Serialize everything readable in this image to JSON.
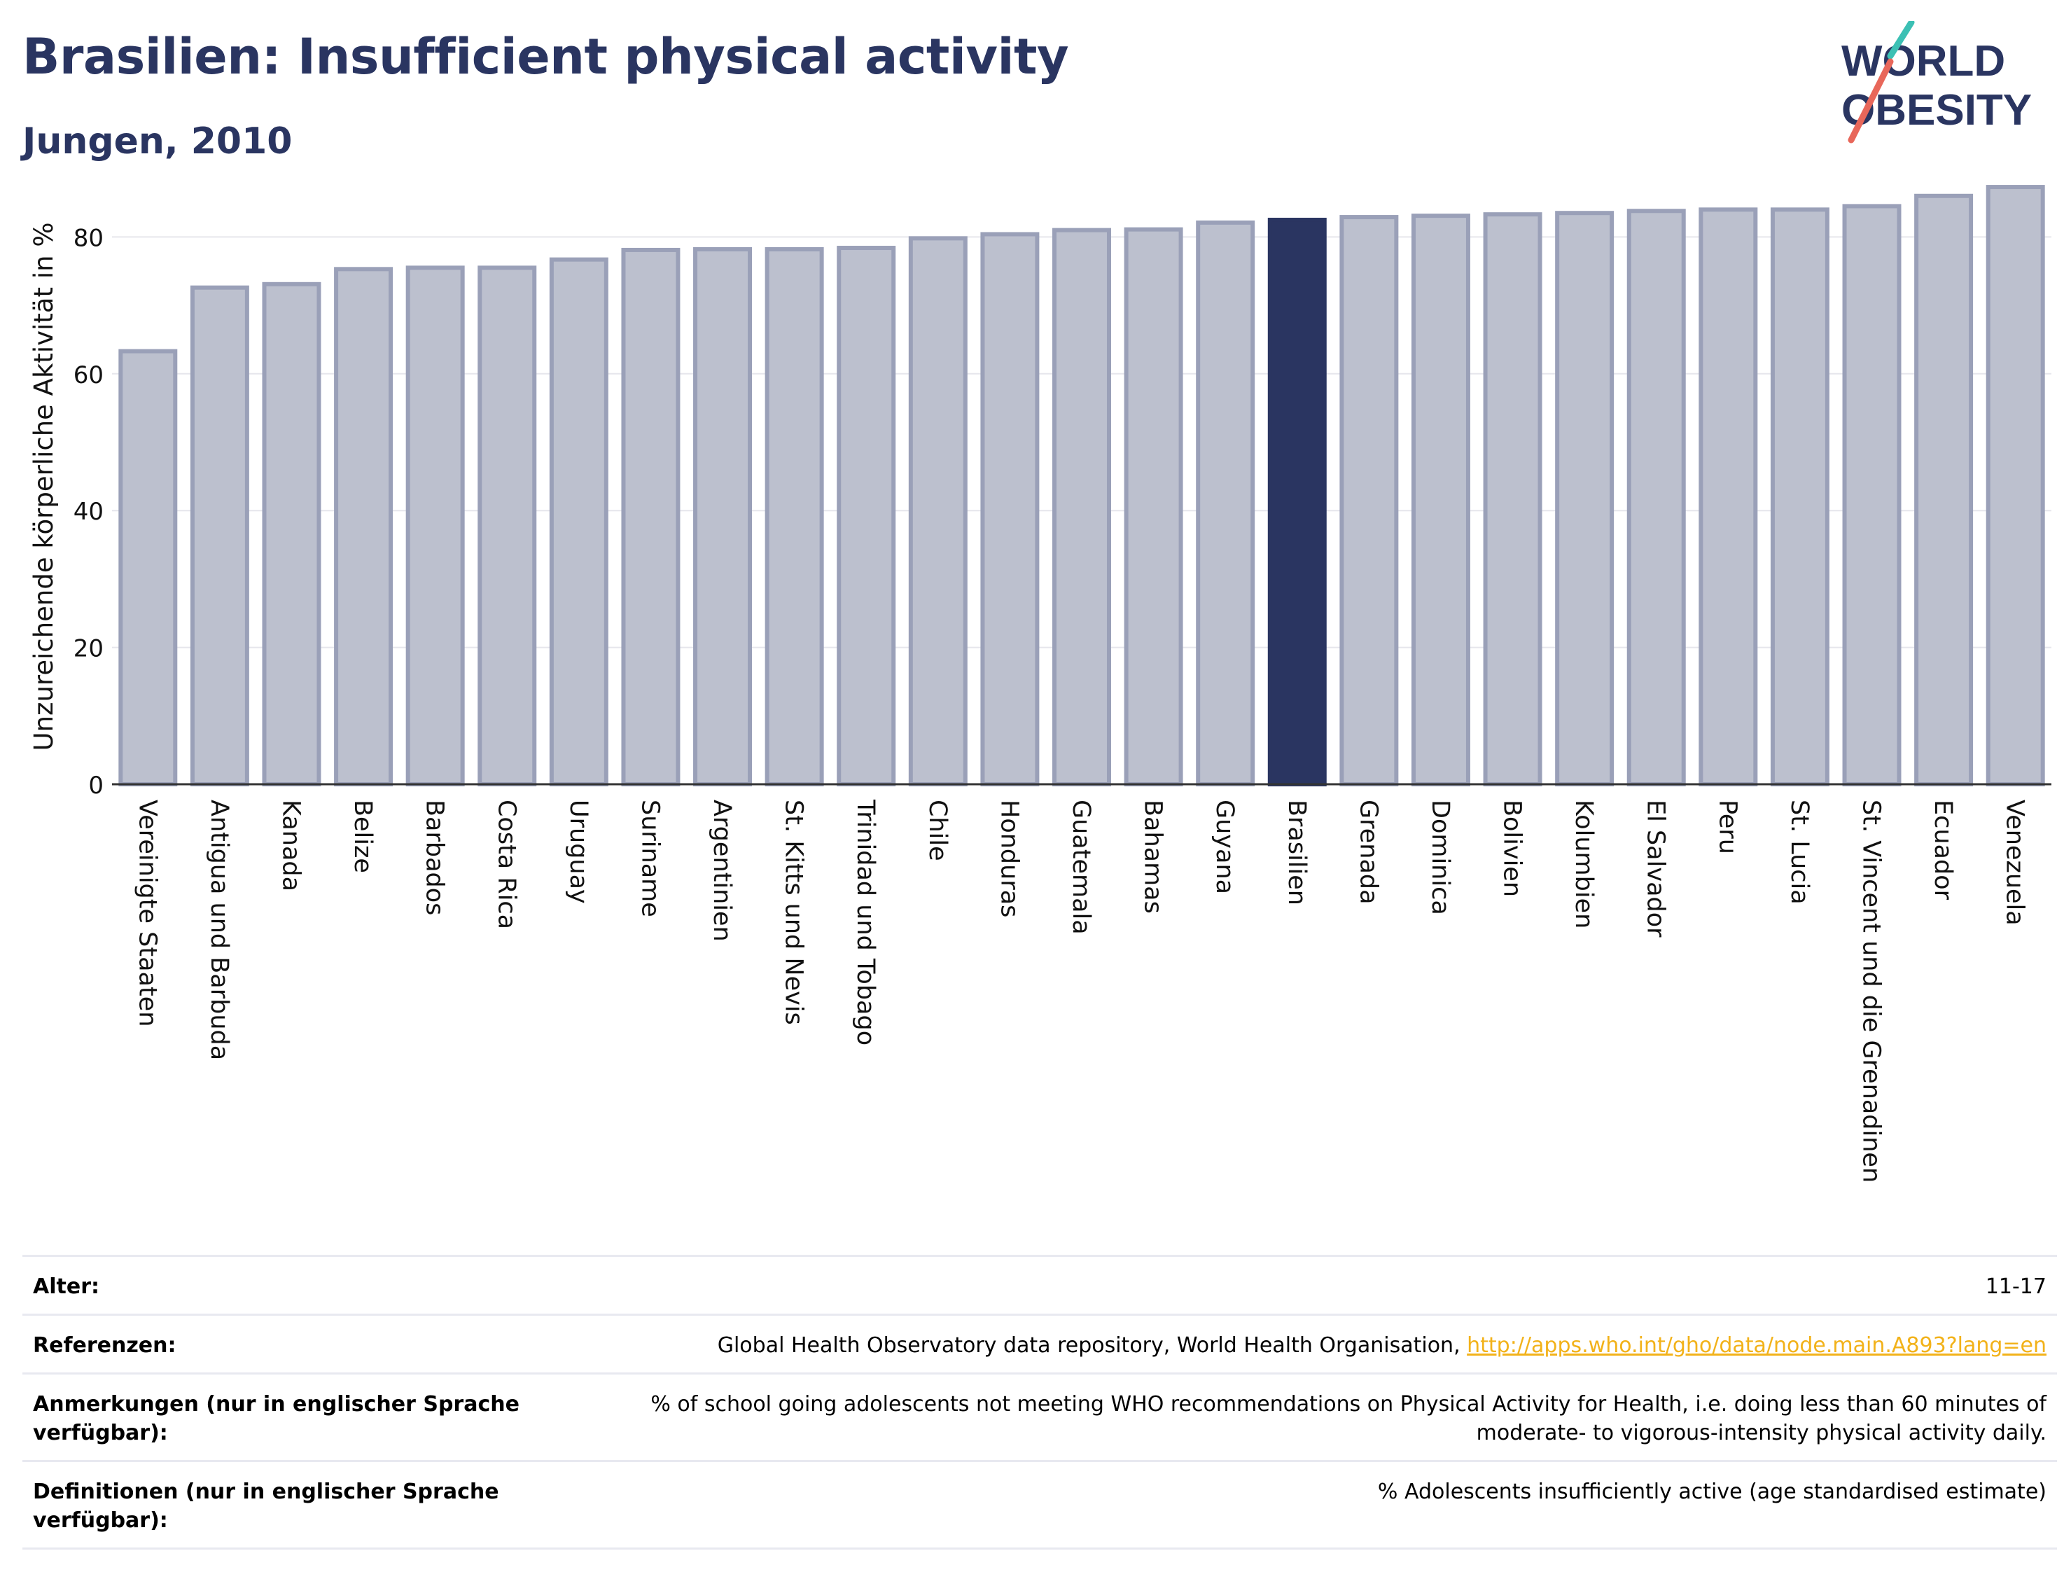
{
  "title": "Brasilien: Insufficient physical activity",
  "subtitle": "Jungen, 2010",
  "logo": {
    "line1": "WORLD",
    "line2": "OBESITY"
  },
  "colors": {
    "bar_fill": "#bcc0ce",
    "bar_stroke": "#9aa0b8",
    "highlight": "#2a3561",
    "grid": "#e6e6ec",
    "axis": "#333333",
    "link": "#f2b21a",
    "logo_teal": "#3cc0b4",
    "logo_coral": "#e8675a"
  },
  "chart_data": {
    "type": "bar",
    "ylabel": "Unzureichende körperliche Aktivität in %",
    "ylim": [
      0,
      87
    ],
    "yticks": [
      0,
      20,
      40,
      60,
      80
    ],
    "grid": true,
    "highlight": "Brasilien",
    "categories": [
      "Vereinigte Staaten",
      "Antigua und Barbuda",
      "Kanada",
      "Belize",
      "Barbados",
      "Costa Rica",
      "Uruguay",
      "Suriname",
      "Argentinien",
      "St. Kitts und Nevis",
      "Trinidad und Tobago",
      "Chile",
      "Honduras",
      "Guatemala",
      "Bahamas",
      "Guyana",
      "Brasilien",
      "Grenada",
      "Dominica",
      "Bolivien",
      "Kolumbien",
      "El Salvador",
      "Peru",
      "St. Lucia",
      "St. Vincent und die Grenadinen",
      "Ecuador",
      "Venezuela"
    ],
    "values": [
      63.3,
      72.6,
      73.1,
      75.3,
      75.5,
      75.5,
      76.7,
      78.1,
      78.2,
      78.2,
      78.4,
      79.8,
      80.4,
      81.0,
      81.1,
      82.1,
      82.5,
      82.9,
      83.1,
      83.3,
      83.5,
      83.8,
      84.0,
      84.0,
      84.5,
      86.0,
      87.3
    ]
  },
  "meta": [
    {
      "label": "Alter:",
      "value": "11-17"
    },
    {
      "label": "Referenzen:",
      "value": "Global Health Observatory data repository, World Health Organisation, ",
      "link": "http://apps.who.int/gho/data/node.main.A893?lang=en"
    },
    {
      "label": "Anmerkungen (nur in englischer Sprache verfügbar):",
      "value": "% of school going adolescents not meeting WHO recommendations on Physical Activity for Health, i.e. doing less than 60 minutes of moderate- to vigorous-intensity physical activity daily."
    },
    {
      "label": "Definitionen (nur in englischer Sprache verfügbar):",
      "value": "% Adolescents insufficiently active (age standardised estimate)"
    }
  ]
}
